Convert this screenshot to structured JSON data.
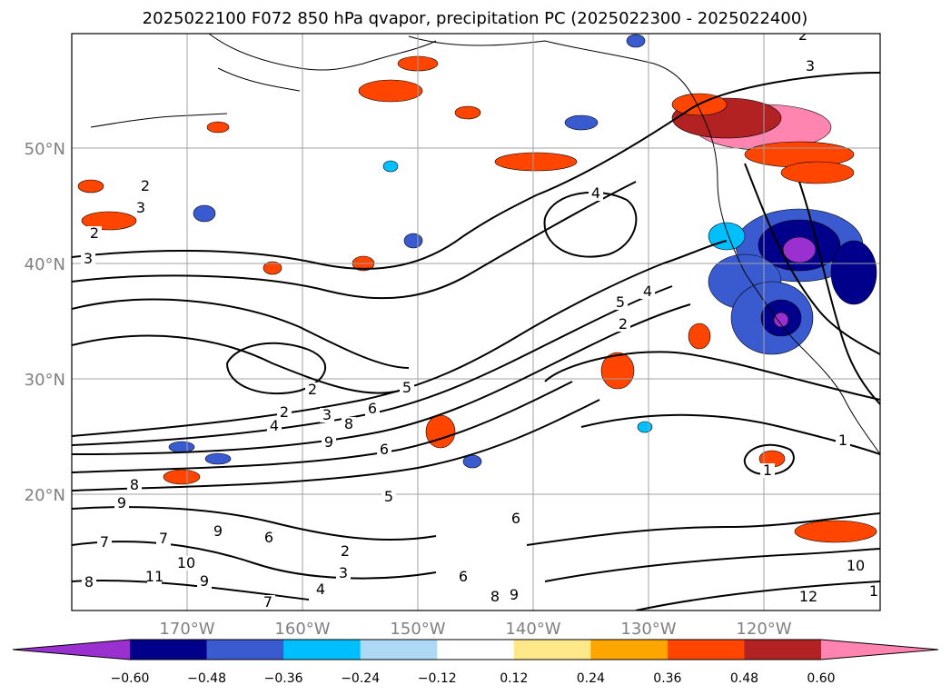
{
  "title": "2025022100 F072 850 hPa qvapor, precipitation PC (2025022300 - 2025022400)",
  "lat_labels": [
    "50°N",
    "40°N",
    "30°N",
    "20°N"
  ],
  "lon_labels": [
    "170°W",
    "160°W",
    "150°W",
    "140°W",
    "130°W",
    "120°W"
  ],
  "colorbar": {
    "colors": [
      "#9b30d0",
      "#00008b",
      "#3a5bd0",
      "#00bfff",
      "#add8f6",
      "#ffffff",
      "#ffe88a",
      "#ffa500",
      "#ff4500",
      "#b22222",
      "#ff85b0"
    ],
    "ticks": [
      "−0.60",
      "−0.48",
      "−0.36",
      "−0.24",
      "−0.12",
      "0.12",
      "0.24",
      "0.36",
      "0.48",
      "0.60"
    ]
  },
  "contour_labels": [
    "2",
    "3",
    "2",
    "3",
    "2",
    "3",
    "4",
    "5",
    "4",
    "2",
    "2",
    "3",
    "4",
    "5",
    "6",
    "6",
    "8",
    "9",
    "2",
    "9",
    "8",
    "1",
    "1",
    "6",
    "6",
    "8",
    "9",
    "10",
    "11",
    "12",
    "10",
    "1",
    "2",
    "3",
    "4",
    "5",
    "6",
    "7",
    "7",
    "8",
    "9",
    "7",
    "9"
  ],
  "chart_data": {
    "type": "map",
    "title": "2025022100 F072 850 hPa qvapor, precipitation PC (2025022300 - 2025022400)",
    "projection": "PlateCarree",
    "lon_range": [
      -180,
      -110
    ],
    "lat_range": [
      10,
      60
    ],
    "gridlines": true,
    "lon_ticks": [
      -170,
      -160,
      -150,
      -140,
      -130,
      -120
    ],
    "lat_ticks": [
      20,
      30,
      40,
      50
    ],
    "contour_field": "850 hPa qvapor",
    "fill_field": "precipitation PC",
    "fill_levels": [
      -0.6,
      -0.48,
      -0.36,
      -0.24,
      -0.12,
      0.12,
      0.24,
      0.36,
      0.48,
      0.6
    ],
    "colorbar_extend": "both"
  }
}
